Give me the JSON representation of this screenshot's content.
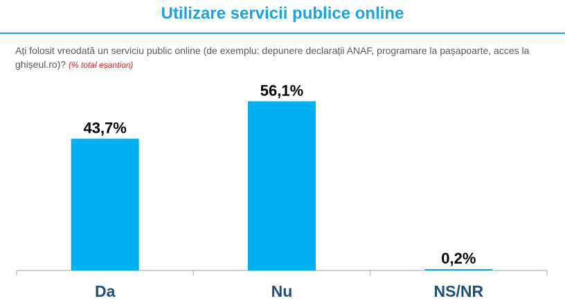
{
  "title": "Utilizare servicii publice online",
  "question": "Ați folosit vreodată un serviciu public online (de exemplu: depunere declarații ANAF, programare la pașapoarte, acces la ghișeul.ro)?",
  "question_note": "(% total eșantion)",
  "colors": {
    "bar": "#00b0f0",
    "title": "#1aa3e0",
    "axis": "#a6a6a6",
    "label": "#000000",
    "category": "#1f4e79"
  },
  "chart_data": {
    "type": "bar",
    "categories": [
      "Da",
      "Nu",
      "NS/NR"
    ],
    "values": [
      43.7,
      56.1,
      0.2
    ],
    "data_labels": [
      "43,7%",
      "56,1%",
      "0,2%"
    ],
    "title": "",
    "xlabel": "",
    "ylabel": "",
    "ylim": [
      0,
      60
    ],
    "grid": false,
    "legend": "none"
  }
}
